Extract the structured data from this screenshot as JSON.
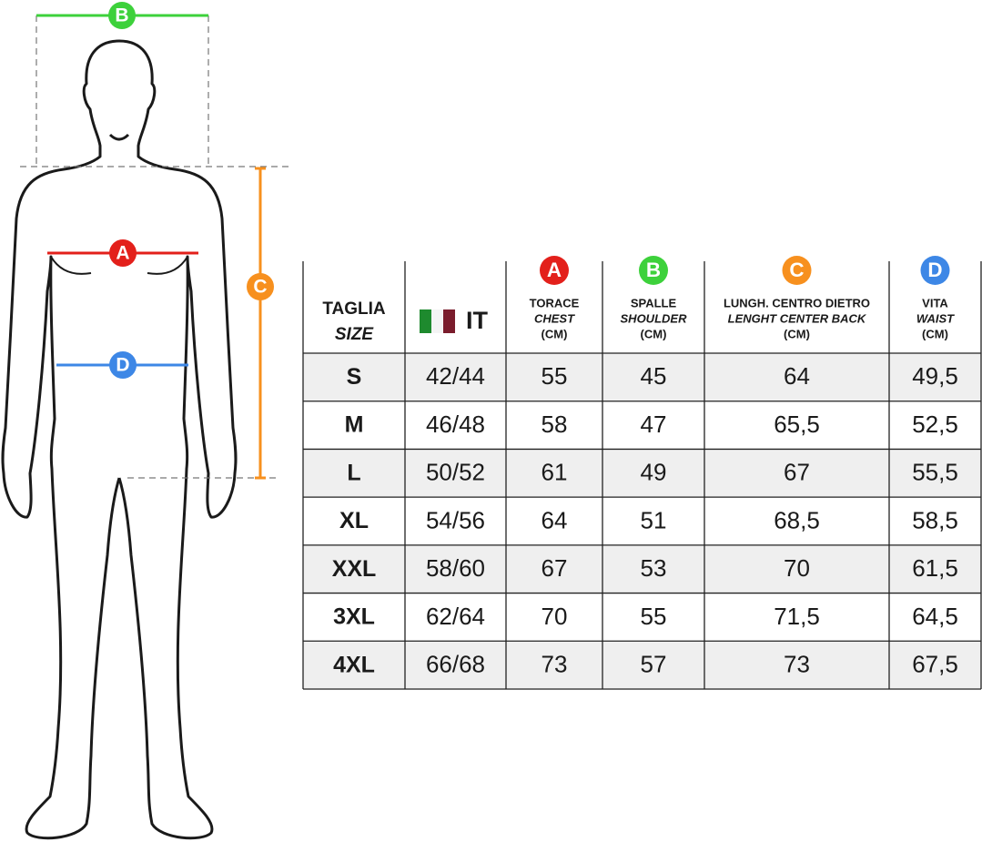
{
  "table": {
    "size_header": [
      "TAGLIA",
      "SIZE"
    ],
    "it_header": "IT",
    "columns": [
      {
        "marker": "A",
        "name": "TORACE",
        "english": "CHEST",
        "unit": "(CM)",
        "color": "#e3201b"
      },
      {
        "marker": "B",
        "name": "SPALLE",
        "english": "SHOULDER",
        "unit": "(CM)",
        "color": "#3dd13b"
      },
      {
        "marker": "C",
        "name": "LUNGH. CENTRO DIETRO",
        "english": "LENGHT CENTER BACK",
        "unit": "(CM)",
        "color": "#f7901e"
      },
      {
        "marker": "D",
        "name": "VITA",
        "english": "WAIST",
        "unit": "(CM)",
        "color": "#3d87e6"
      }
    ],
    "rows": [
      [
        "S",
        "42/44",
        "55",
        "45",
        "64",
        "49,5"
      ],
      [
        "M",
        "46/48",
        "58",
        "47",
        "65,5",
        "52,5"
      ],
      [
        "L",
        "50/52",
        "61",
        "49",
        "67",
        "55,5"
      ],
      [
        "XL",
        "54/56",
        "64",
        "51",
        "68,5",
        "58,5"
      ],
      [
        "XXL",
        "58/60",
        "67",
        "53",
        "70",
        "61,5"
      ],
      [
        "3XL",
        "62/64",
        "70",
        "55",
        "71,5",
        "64,5"
      ],
      [
        "4XL",
        "66/68",
        "73",
        "57",
        "73",
        "67,5"
      ]
    ]
  }
}
